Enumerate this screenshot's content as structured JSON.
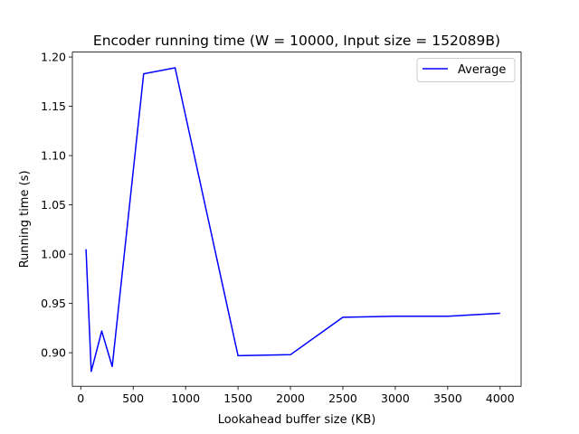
{
  "chart_data": {
    "type": "line",
    "title": "Encoder running time (W = 10000, Input size = 152089B)",
    "xlabel": "Lookahead buffer size (KB)",
    "ylabel": "Running time (s)",
    "xlim": [
      -80,
      4200
    ],
    "ylim": [
      0.866,
      1.205
    ],
    "xticks": [
      0,
      500,
      1000,
      1500,
      2000,
      2500,
      3000,
      3500,
      4000
    ],
    "yticks": [
      0.9,
      0.95,
      1.0,
      1.05,
      1.1,
      1.15,
      1.2
    ],
    "xtick_labels": [
      "0",
      "500",
      "1000",
      "1500",
      "2000",
      "2500",
      "3000",
      "3500",
      "4000"
    ],
    "ytick_labels": [
      "0.90",
      "0.95",
      "1.00",
      "1.05",
      "1.10",
      "1.15",
      "1.20"
    ],
    "grid": false,
    "legend_position": "top-right",
    "series": [
      {
        "name": "Average",
        "color": "#0000ff",
        "x": [
          50,
          100,
          200,
          300,
          600,
          900,
          1500,
          2000,
          2500,
          3000,
          3500,
          4000
        ],
        "y": [
          1.005,
          0.881,
          0.922,
          0.886,
          1.183,
          1.189,
          0.897,
          0.898,
          0.936,
          0.937,
          0.937,
          0.94
        ]
      }
    ]
  }
}
